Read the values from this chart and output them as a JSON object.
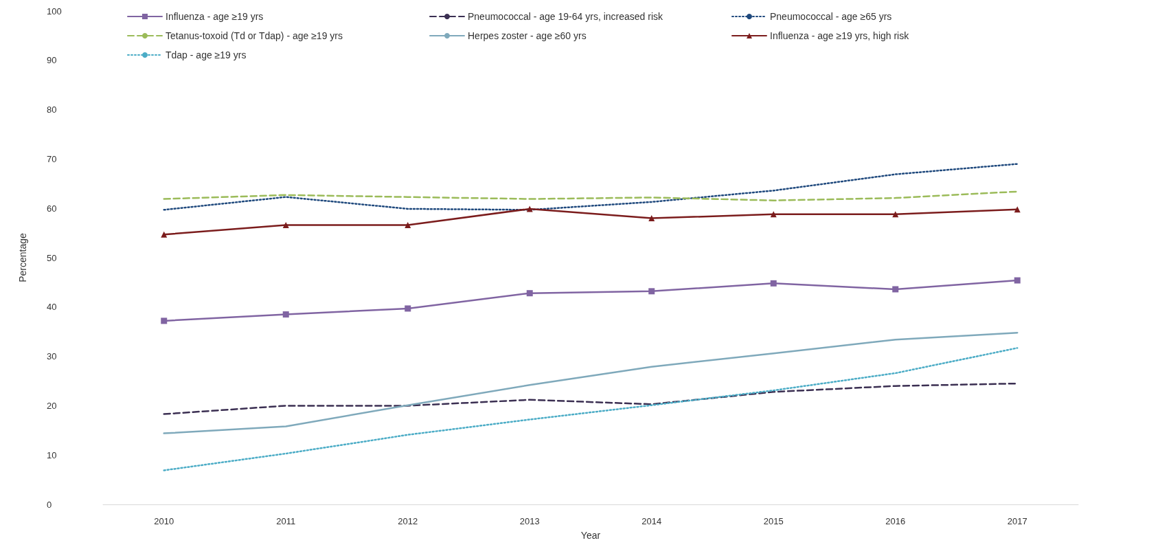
{
  "chart_data": {
    "type": "line",
    "xlabel": "Year",
    "ylabel": "Percentage",
    "categories": [
      "2010",
      "2011",
      "2012",
      "2013",
      "2014",
      "2015",
      "2016",
      "2017"
    ],
    "ylim": [
      0,
      100
    ],
    "yticks": [
      0,
      10,
      20,
      30,
      40,
      50,
      60,
      70,
      80,
      90,
      100
    ],
    "grid": false,
    "legend": "top",
    "series": [
      {
        "name": "Influenza - age ≥19 yrs",
        "color": "#8064a2",
        "marker": "square",
        "line_style": "solid",
        "values": [
          37.2,
          38.5,
          39.7,
          42.8,
          43.2,
          44.8,
          43.6,
          45.4
        ]
      },
      {
        "name": "Pneumococcal - age 19-64 yrs, increased risk",
        "color": "#3b2f52",
        "marker": "none",
        "line_style": "dashed",
        "values": [
          18.3,
          20.0,
          20.0,
          21.2,
          20.3,
          22.8,
          24.0,
          24.5
        ]
      },
      {
        "name": "Pneumococcal - age ≥65 yrs",
        "color": "#1f497d",
        "marker": "none",
        "line_style": "dotted",
        "values": [
          59.7,
          62.3,
          59.9,
          59.7,
          61.3,
          63.6,
          66.9,
          69.0
        ]
      },
      {
        "name": "Tetanus-toxoid (Td or Tdap) - age ≥19 yrs",
        "color": "#9bbb59",
        "marker": "none",
        "line_style": "dashed",
        "values": [
          61.9,
          62.7,
          62.3,
          61.9,
          62.2,
          61.6,
          62.1,
          63.4
        ]
      },
      {
        "name": "Herpes zoster - age ≥60 yrs",
        "color": "#7fa9bb",
        "marker": "none",
        "line_style": "solid",
        "values": [
          14.4,
          15.8,
          20.1,
          24.2,
          27.9,
          30.6,
          33.4,
          34.8
        ]
      },
      {
        "name": "Influenza - age ≥19 yrs, high risk",
        "color": "#7b1c1c",
        "marker": "triangle",
        "line_style": "solid",
        "values": [
          54.7,
          56.6,
          56.6,
          59.9,
          58.0,
          58.8,
          58.8,
          59.8
        ]
      },
      {
        "name": "Tdap - age ≥19 yrs",
        "color": "#4bacc6",
        "marker": "none",
        "line_style": "dotted",
        "values": [
          6.9,
          10.3,
          14.1,
          17.2,
          20.1,
          23.1,
          26.6,
          31.7
        ]
      }
    ]
  }
}
